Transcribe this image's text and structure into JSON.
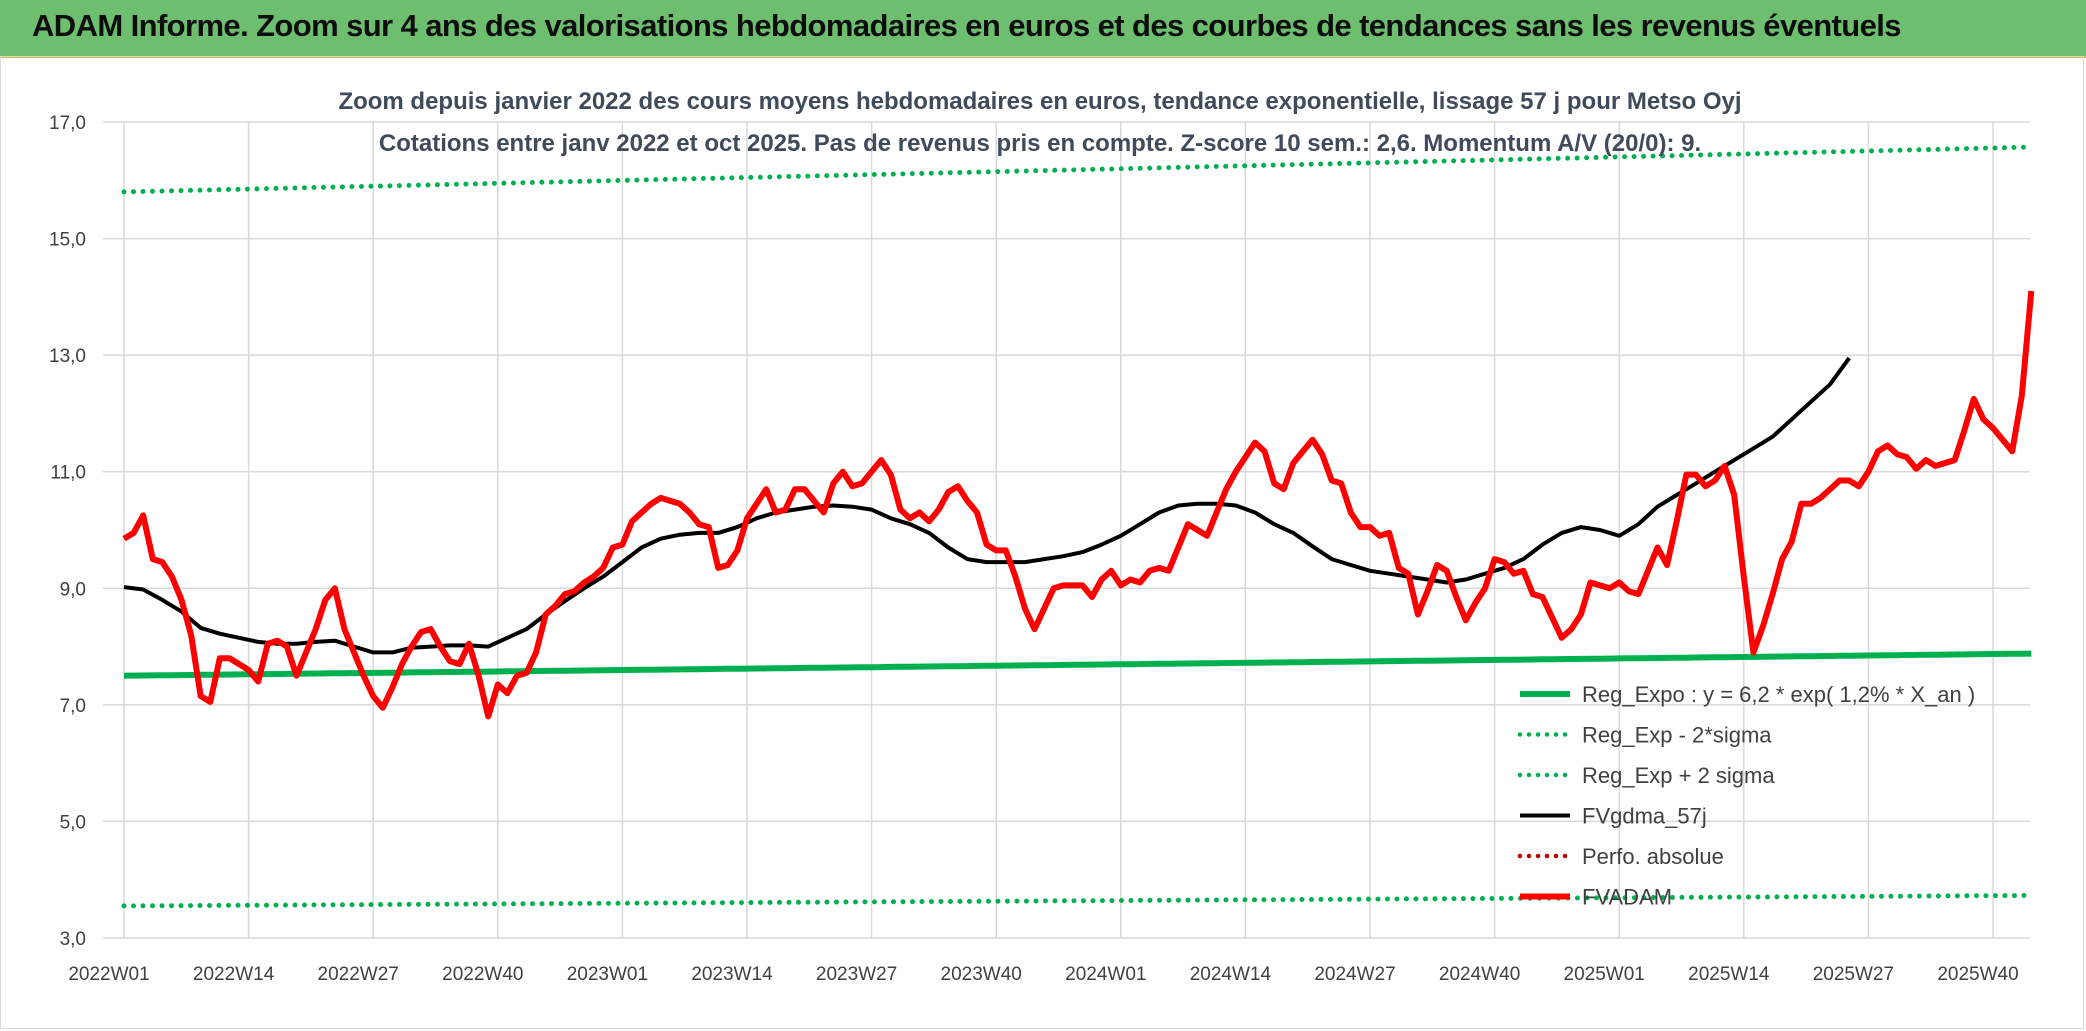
{
  "header": {
    "title": "ADAM Informe. Zoom sur 4 ans des valorisations hebdomadaires en euros et des courbes de tendances sans les revenus éventuels"
  },
  "chart_data": {
    "type": "line",
    "title": "",
    "subtitle_lines": [
      "Zoom depuis janvier 2022 des cours moyens hebdomadaires en euros, tendance exponentielle, lissage 57 j pour Metso Oyj",
      "Cotations entre janv 2022 et oct 2025. Pas de revenus pris en compte. Z-score 10 sem.: 2,6. Momentum A/V (20/0): 9."
    ],
    "xlabel": "",
    "ylabel": "",
    "ylim": [
      3,
      17
    ],
    "y_ticks": [
      "3,0",
      "5,0",
      "7,0",
      "9,0",
      "11,0",
      "13,0",
      "15,0",
      "17,0"
    ],
    "x_tick_labels": [
      "2022W01",
      "2022W14",
      "2022W27",
      "2022W40",
      "2023W01",
      "2023W14",
      "2023W27",
      "2023W40",
      "2024W01",
      "2024W14",
      "2024W27",
      "2024W40",
      "2025W01",
      "2025W14",
      "2025W27",
      "2025W40"
    ],
    "x_tick_spacing_weeks": 13,
    "grid": true,
    "legend_position": "bottom-right",
    "series": [
      {
        "name": "Reg_Expo : y = 6,2 * exp( 1,2% *  X_an )",
        "color": "#00b050",
        "style": "solid-thick",
        "start": 7.5,
        "end": 7.88
      },
      {
        "name": "Reg_Exp - 2*sigma",
        "color": "#00b050",
        "style": "dotted",
        "start": 3.55,
        "end": 3.73
      },
      {
        "name": "Reg_Exp + 2 sigma",
        "color": "#00b050",
        "style": "dotted",
        "start": 15.8,
        "end": 16.57
      },
      {
        "name": "FVgdma_57j",
        "color": "#000000",
        "style": "solid",
        "points": [
          [
            0,
            9.02
          ],
          [
            2,
            8.98
          ],
          [
            4,
            8.8
          ],
          [
            6,
            8.6
          ],
          [
            8,
            8.32
          ],
          [
            10,
            8.22
          ],
          [
            12,
            8.15
          ],
          [
            14,
            8.08
          ],
          [
            16,
            8.05
          ],
          [
            18,
            8.05
          ],
          [
            20,
            8.08
          ],
          [
            22,
            8.1
          ],
          [
            24,
            8.0
          ],
          [
            26,
            7.9
          ],
          [
            28,
            7.9
          ],
          [
            30,
            7.98
          ],
          [
            32,
            8.0
          ],
          [
            34,
            8.02
          ],
          [
            36,
            8.02
          ],
          [
            38,
            8.0
          ],
          [
            40,
            8.15
          ],
          [
            42,
            8.3
          ],
          [
            44,
            8.55
          ],
          [
            46,
            8.78
          ],
          [
            48,
            9.0
          ],
          [
            50,
            9.2
          ],
          [
            52,
            9.45
          ],
          [
            54,
            9.7
          ],
          [
            56,
            9.85
          ],
          [
            58,
            9.92
          ],
          [
            60,
            9.95
          ],
          [
            62,
            9.95
          ],
          [
            64,
            10.05
          ],
          [
            66,
            10.2
          ],
          [
            68,
            10.3
          ],
          [
            70,
            10.35
          ],
          [
            72,
            10.4
          ],
          [
            74,
            10.42
          ],
          [
            76,
            10.4
          ],
          [
            78,
            10.35
          ],
          [
            80,
            10.2
          ],
          [
            82,
            10.1
          ],
          [
            84,
            9.95
          ],
          [
            86,
            9.7
          ],
          [
            88,
            9.5
          ],
          [
            90,
            9.45
          ],
          [
            92,
            9.45
          ],
          [
            94,
            9.45
          ],
          [
            96,
            9.5
          ],
          [
            98,
            9.55
          ],
          [
            100,
            9.62
          ],
          [
            102,
            9.75
          ],
          [
            104,
            9.9
          ],
          [
            106,
            10.1
          ],
          [
            108,
            10.3
          ],
          [
            110,
            10.42
          ],
          [
            112,
            10.45
          ],
          [
            114,
            10.45
          ],
          [
            116,
            10.42
          ],
          [
            118,
            10.3
          ],
          [
            120,
            10.1
          ],
          [
            122,
            9.95
          ],
          [
            124,
            9.72
          ],
          [
            126,
            9.5
          ],
          [
            128,
            9.4
          ],
          [
            130,
            9.3
          ],
          [
            132,
            9.25
          ],
          [
            134,
            9.2
          ],
          [
            136,
            9.15
          ],
          [
            138,
            9.1
          ],
          [
            140,
            9.15
          ],
          [
            142,
            9.25
          ],
          [
            144,
            9.35
          ],
          [
            146,
            9.5
          ],
          [
            148,
            9.75
          ],
          [
            150,
            9.95
          ],
          [
            152,
            10.05
          ],
          [
            154,
            10.0
          ],
          [
            156,
            9.9
          ],
          [
            158,
            10.1
          ],
          [
            160,
            10.4
          ],
          [
            162,
            10.6
          ],
          [
            164,
            10.8
          ],
          [
            166,
            11.0
          ],
          [
            168,
            11.2
          ],
          [
            170,
            11.4
          ],
          [
            172,
            11.6
          ],
          [
            174,
            11.9
          ],
          [
            176,
            12.2
          ],
          [
            178,
            12.5
          ],
          [
            180,
            12.95
          ]
        ]
      },
      {
        "name": "Perfo. absolue",
        "color": "#c00000",
        "style": "dotted",
        "points": []
      },
      {
        "name": "FVADAM",
        "color": "#ff0000",
        "style": "solid-thick",
        "points": [
          [
            0,
            9.85
          ],
          [
            1,
            9.95
          ],
          [
            2,
            10.25
          ],
          [
            3,
            9.5
          ],
          [
            4,
            9.45
          ],
          [
            5,
            9.2
          ],
          [
            6,
            8.8
          ],
          [
            7,
            8.2
          ],
          [
            8,
            7.15
          ],
          [
            9,
            7.05
          ],
          [
            10,
            7.8
          ],
          [
            11,
            7.8
          ],
          [
            12,
            7.7
          ],
          [
            13,
            7.6
          ],
          [
            14,
            7.4
          ],
          [
            15,
            8.05
          ],
          [
            16,
            8.1
          ],
          [
            17,
            8.0
          ],
          [
            18,
            7.5
          ],
          [
            19,
            7.9
          ],
          [
            20,
            8.3
          ],
          [
            21,
            8.8
          ],
          [
            22,
            9.0
          ],
          [
            23,
            8.3
          ],
          [
            24,
            7.9
          ],
          [
            25,
            7.5
          ],
          [
            26,
            7.15
          ],
          [
            27,
            6.95
          ],
          [
            28,
            7.3
          ],
          [
            29,
            7.7
          ],
          [
            30,
            8.0
          ],
          [
            31,
            8.25
          ],
          [
            32,
            8.3
          ],
          [
            33,
            8.0
          ],
          [
            34,
            7.75
          ],
          [
            35,
            7.7
          ],
          [
            36,
            8.05
          ],
          [
            37,
            7.5
          ],
          [
            38,
            6.8
          ],
          [
            39,
            7.35
          ],
          [
            40,
            7.2
          ],
          [
            41,
            7.5
          ],
          [
            42,
            7.55
          ],
          [
            43,
            7.9
          ],
          [
            44,
            8.55
          ],
          [
            45,
            8.7
          ],
          [
            46,
            8.9
          ],
          [
            47,
            8.95
          ],
          [
            48,
            9.1
          ],
          [
            49,
            9.2
          ],
          [
            50,
            9.35
          ],
          [
            51,
            9.7
          ],
          [
            52,
            9.75
          ],
          [
            53,
            10.15
          ],
          [
            54,
            10.3
          ],
          [
            55,
            10.45
          ],
          [
            56,
            10.55
          ],
          [
            57,
            10.5
          ],
          [
            58,
            10.45
          ],
          [
            59,
            10.3
          ],
          [
            60,
            10.1
          ],
          [
            61,
            10.05
          ],
          [
            62,
            9.35
          ],
          [
            63,
            9.4
          ],
          [
            64,
            9.65
          ],
          [
            65,
            10.2
          ],
          [
            66,
            10.45
          ],
          [
            67,
            10.7
          ],
          [
            68,
            10.3
          ],
          [
            69,
            10.35
          ],
          [
            70,
            10.7
          ],
          [
            71,
            10.7
          ],
          [
            72,
            10.5
          ],
          [
            73,
            10.3
          ],
          [
            74,
            10.8
          ],
          [
            75,
            11.0
          ],
          [
            76,
            10.75
          ],
          [
            77,
            10.8
          ],
          [
            78,
            11.0
          ],
          [
            79,
            11.2
          ],
          [
            80,
            10.95
          ],
          [
            81,
            10.35
          ],
          [
            82,
            10.2
          ],
          [
            83,
            10.3
          ],
          [
            84,
            10.15
          ],
          [
            85,
            10.35
          ],
          [
            86,
            10.65
          ],
          [
            87,
            10.75
          ],
          [
            88,
            10.5
          ],
          [
            89,
            10.3
          ],
          [
            90,
            9.75
          ],
          [
            91,
            9.65
          ],
          [
            92,
            9.65
          ],
          [
            93,
            9.2
          ],
          [
            94,
            8.65
          ],
          [
            95,
            8.3
          ],
          [
            96,
            8.65
          ],
          [
            97,
            9.0
          ],
          [
            98,
            9.05
          ],
          [
            99,
            9.05
          ],
          [
            100,
            9.05
          ],
          [
            101,
            8.85
          ],
          [
            102,
            9.15
          ],
          [
            103,
            9.3
          ],
          [
            104,
            9.05
          ],
          [
            105,
            9.15
          ],
          [
            106,
            9.1
          ],
          [
            107,
            9.3
          ],
          [
            108,
            9.35
          ],
          [
            109,
            9.3
          ],
          [
            110,
            9.7
          ],
          [
            111,
            10.1
          ],
          [
            112,
            10.0
          ],
          [
            113,
            9.9
          ],
          [
            114,
            10.3
          ],
          [
            115,
            10.7
          ],
          [
            116,
            11.0
          ],
          [
            117,
            11.25
          ],
          [
            118,
            11.5
          ],
          [
            119,
            11.35
          ],
          [
            120,
            10.8
          ],
          [
            121,
            10.7
          ],
          [
            122,
            11.15
          ],
          [
            123,
            11.35
          ],
          [
            124,
            11.55
          ],
          [
            125,
            11.3
          ],
          [
            126,
            10.85
          ],
          [
            127,
            10.8
          ],
          [
            128,
            10.3
          ],
          [
            129,
            10.05
          ],
          [
            130,
            10.05
          ],
          [
            131,
            9.9
          ],
          [
            132,
            9.95
          ],
          [
            133,
            9.35
          ],
          [
            134,
            9.25
          ],
          [
            135,
            8.55
          ],
          [
            136,
            8.95
          ],
          [
            137,
            9.4
          ],
          [
            138,
            9.3
          ],
          [
            139,
            8.85
          ],
          [
            140,
            8.45
          ],
          [
            141,
            8.75
          ],
          [
            142,
            9.0
          ],
          [
            143,
            9.5
          ],
          [
            144,
            9.45
          ],
          [
            145,
            9.25
          ],
          [
            146,
            9.3
          ],
          [
            147,
            8.9
          ],
          [
            148,
            8.85
          ],
          [
            149,
            8.5
          ],
          [
            150,
            8.15
          ],
          [
            151,
            8.3
          ],
          [
            152,
            8.55
          ],
          [
            153,
            9.1
          ],
          [
            154,
            9.05
          ],
          [
            155,
            9.0
          ],
          [
            156,
            9.1
          ],
          [
            157,
            8.95
          ],
          [
            158,
            8.9
          ],
          [
            159,
            9.3
          ],
          [
            160,
            9.7
          ],
          [
            161,
            9.4
          ],
          [
            162,
            10.15
          ],
          [
            163,
            10.95
          ],
          [
            164,
            10.95
          ],
          [
            165,
            10.75
          ],
          [
            166,
            10.85
          ],
          [
            167,
            11.1
          ],
          [
            168,
            10.6
          ],
          [
            169,
            9.2
          ],
          [
            170,
            7.9
          ],
          [
            171,
            8.35
          ],
          [
            172,
            8.9
          ],
          [
            173,
            9.5
          ],
          [
            174,
            9.8
          ],
          [
            175,
            10.45
          ],
          [
            176,
            10.45
          ],
          [
            177,
            10.55
          ],
          [
            178,
            10.7
          ],
          [
            179,
            10.85
          ],
          [
            180,
            10.85
          ],
          [
            181,
            10.75
          ],
          [
            182,
            11.0
          ],
          [
            183,
            11.35
          ],
          [
            184,
            11.45
          ],
          [
            185,
            11.3
          ],
          [
            186,
            11.25
          ],
          [
            187,
            11.05
          ],
          [
            188,
            11.2
          ],
          [
            189,
            11.1
          ],
          [
            190,
            11.15
          ],
          [
            191,
            11.2
          ],
          [
            192,
            11.7
          ],
          [
            193,
            12.25
          ],
          [
            194,
            11.9
          ],
          [
            195,
            11.75
          ],
          [
            196,
            11.55
          ],
          [
            197,
            11.35
          ],
          [
            198,
            12.3
          ],
          [
            199,
            14.1
          ]
        ]
      }
    ]
  }
}
